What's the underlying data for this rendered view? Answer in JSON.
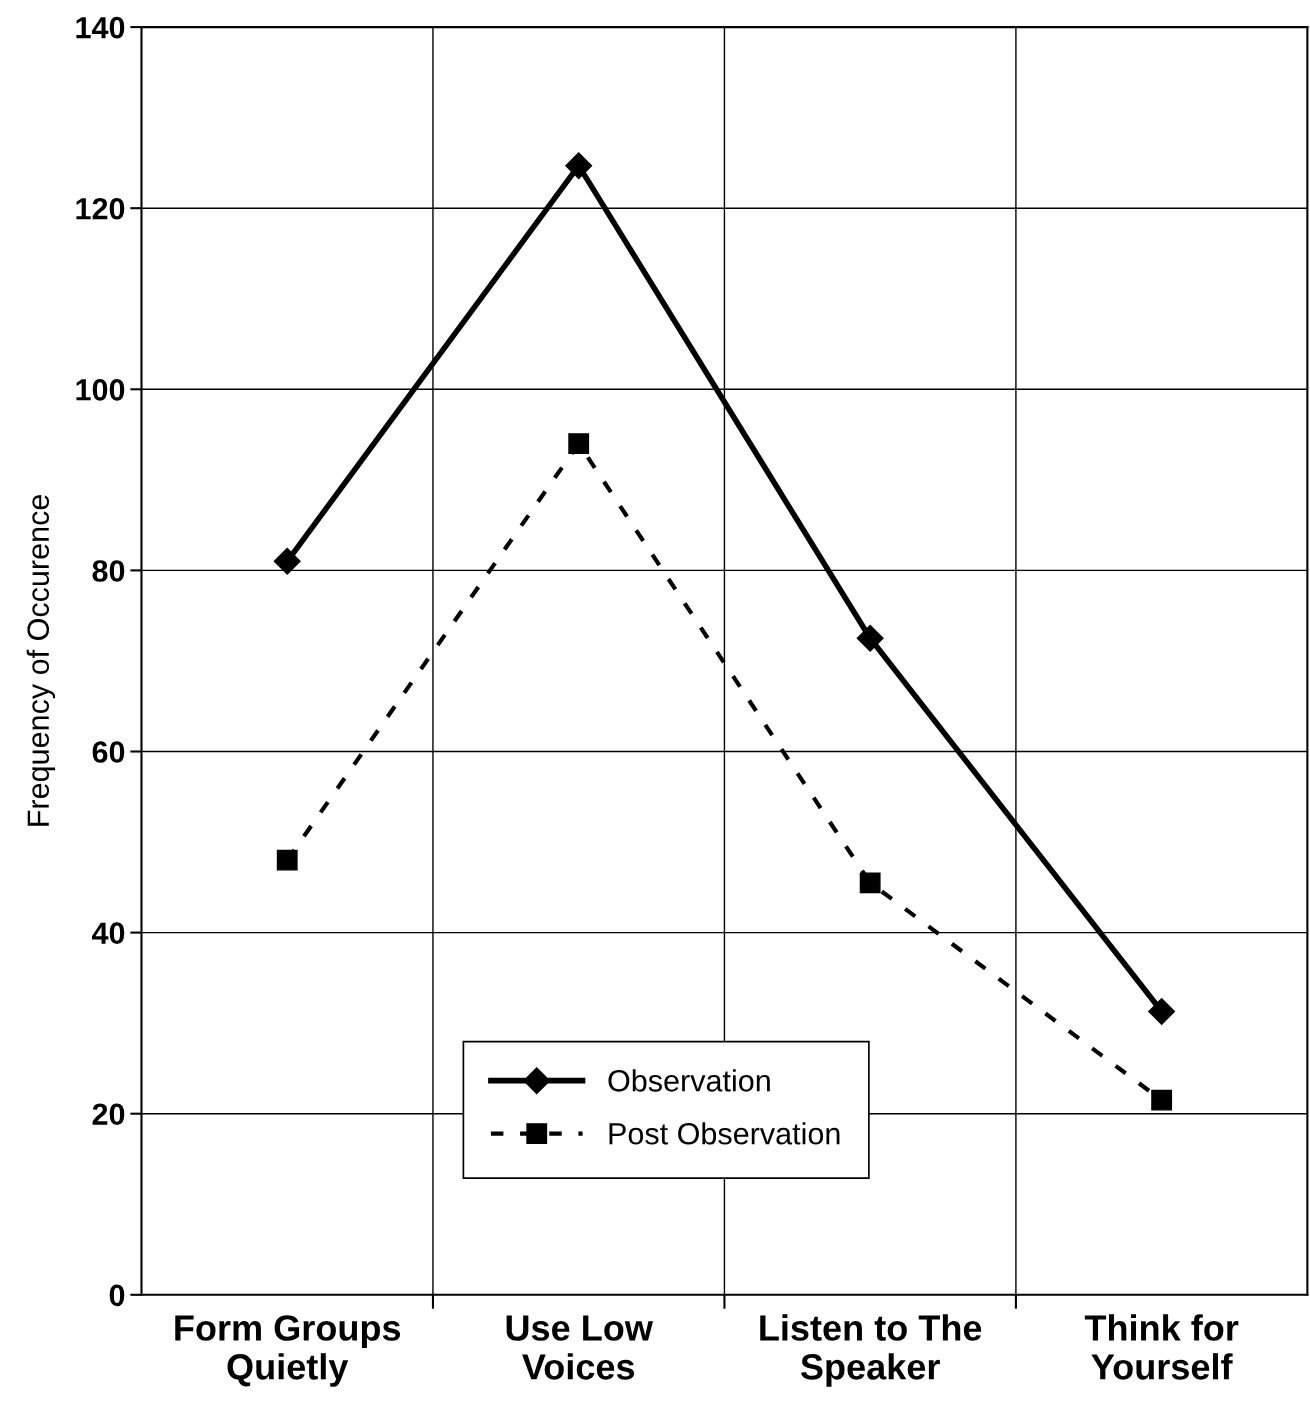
{
  "chart_data": {
    "type": "line",
    "ylabel": "Frequency of Occurence",
    "categories": [
      "Form Groups\nQuietly",
      "Use Low\nVoices",
      "Listen to The\nSpeaker",
      "Think for\nYourself"
    ],
    "series": [
      {
        "name": "Observation",
        "color": "#000000",
        "values": [
          81,
          124.7,
          72.5,
          31.3
        ],
        "marker": "diamond",
        "line_style": "solid"
      },
      {
        "name": "Post Observation",
        "color": "#000000",
        "values": [
          48,
          94,
          45.5,
          21.5
        ],
        "marker": "square",
        "line_style": "dashed"
      }
    ],
    "ylim": [
      0,
      140
    ],
    "yticks": [
      0,
      20,
      40,
      60,
      80,
      100,
      120,
      140
    ],
    "grid": true,
    "legend": "bottom"
  }
}
